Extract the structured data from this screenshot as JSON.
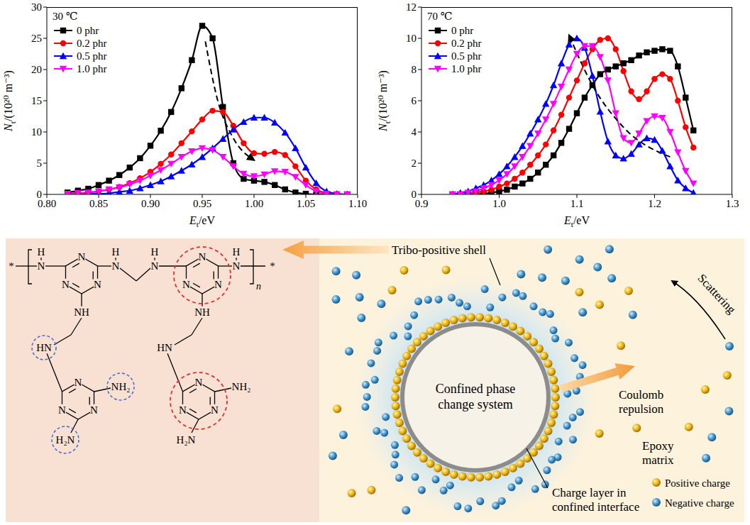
{
  "chart_data": [
    {
      "type": "line",
      "title": "30 ℃",
      "xlabel": {
        "symbol": "E",
        "subscript": "t",
        "unit": "/eV"
      },
      "ylabel": {
        "symbol": "N",
        "subscript": "t",
        "unit": "/(10²⁰ m⁻³)"
      },
      "x": [
        0.82,
        0.83,
        0.84,
        0.85,
        0.86,
        0.87,
        0.88,
        0.89,
        0.9,
        0.91,
        0.92,
        0.93,
        0.94,
        0.95,
        0.96,
        0.97,
        0.98,
        0.99,
        1.0,
        1.01,
        1.02,
        1.03,
        1.04,
        1.05,
        1.06,
        1.07,
        1.08,
        1.09
      ],
      "xlim": [
        0.8,
        1.1
      ],
      "xticks": [
        {
          "value": 0.8,
          "label": "0.80"
        },
        0.85,
        {
          "value": 0.9,
          "label": "0.90"
        },
        0.95,
        {
          "value": 1,
          "label": "1.00"
        },
        1.05,
        {
          "value": 1.1,
          "label": "1.10"
        }
      ],
      "ylim": [
        0,
        30
      ],
      "yticks": [
        0,
        5,
        10,
        15,
        20,
        25,
        30
      ],
      "legend": "upper left",
      "series": [
        {
          "name": "0 phr",
          "color": "#000000",
          "marker": "square",
          "values": [
            0.3,
            0.6,
            0.9,
            1.5,
            2.2,
            3.1,
            4.3,
            5.8,
            7.8,
            10.2,
            13.2,
            17,
            21.5,
            27,
            25,
            14,
            5,
            2.5,
            2.2,
            2.0,
            1.5,
            0.8,
            0.3,
            0.1,
            0,
            0,
            0,
            0
          ]
        },
        {
          "name": "0.2 phr",
          "color": "#ff0000",
          "marker": "circle",
          "values": [
            0.1,
            0.2,
            0.3,
            0.5,
            0.8,
            1.2,
            1.8,
            2.6,
            3.6,
            4.9,
            6.4,
            8.2,
            10.1,
            12,
            13.4,
            13.2,
            11,
            8.2,
            6.6,
            6.5,
            6.8,
            6.3,
            4.5,
            2.2,
            0.8,
            0.2,
            0,
            0
          ]
        },
        {
          "name": "0.5 phr",
          "color": "#0000ff",
          "marker": "triangle",
          "values": [
            0,
            0,
            0.1,
            0.1,
            0.2,
            0.4,
            0.6,
            1,
            1.5,
            2.1,
            2.9,
            3.8,
            4.8,
            6,
            7.4,
            8.9,
            10.4,
            11.6,
            12.3,
            12.3,
            11.5,
            9.9,
            7.4,
            4.3,
            1.8,
            0.5,
            0.1,
            0
          ]
        },
        {
          "name": "1.0 phr",
          "color": "#ff00ff",
          "marker": "triangle-down",
          "values": [
            0.1,
            0.2,
            0.3,
            0.5,
            0.8,
            1.1,
            1.6,
            2.2,
            3,
            3.9,
            4.9,
            6,
            6.9,
            7.4,
            7.1,
            6,
            4.5,
            3.3,
            2.9,
            3.2,
            3.7,
            3.6,
            2.8,
            1.5,
            0.5,
            0.1,
            0,
            0
          ]
        }
      ],
      "annotations": [
        {
          "type": "arrow",
          "line_style": "dashed",
          "color": "#000000",
          "x": [
            0.953,
            0.965,
            0.98,
            1.0
          ],
          "values": [
            24.5,
            15,
            9,
            5.5
          ]
        }
      ]
    },
    {
      "type": "line",
      "title": "70 ℃",
      "xlabel": {
        "symbol": "E",
        "subscript": "t",
        "unit": "/eV"
      },
      "ylabel": {
        "symbol": "N",
        "subscript": "t",
        "unit": "/(10²⁰ m⁻³)"
      },
      "x": [
        0.94,
        0.95,
        0.96,
        0.97,
        0.98,
        0.99,
        1.0,
        1.01,
        1.02,
        1.03,
        1.04,
        1.05,
        1.06,
        1.07,
        1.08,
        1.09,
        1.1,
        1.11,
        1.12,
        1.13,
        1.14,
        1.15,
        1.16,
        1.17,
        1.18,
        1.19,
        1.2,
        1.21,
        1.22,
        1.23,
        1.24,
        1.25
      ],
      "xlim": [
        0.9,
        1.3
      ],
      "xticks": [
        0.9,
        {
          "value": 1,
          "label": "1.0"
        },
        1.1,
        1.2,
        1.3
      ],
      "ylim": [
        0,
        12
      ],
      "yticks": [
        0,
        2,
        4,
        6,
        8,
        10,
        12
      ],
      "legend": "upper left",
      "series": [
        {
          "name": "0 phr",
          "color": "#000000",
          "marker": "square",
          "values": [
            0,
            0,
            0,
            0,
            0.05,
            0.1,
            0.2,
            0.3,
            0.5,
            0.7,
            1,
            1.4,
            1.9,
            2.5,
            3.3,
            4.2,
            5.2,
            6.2,
            7,
            7.7,
            8,
            8.2,
            8.4,
            8.6,
            8.9,
            9.1,
            9.2,
            9.3,
            9.2,
            8.2,
            6.2,
            4.1
          ]
        },
        {
          "name": "0.2 phr",
          "color": "#ff0000",
          "marker": "circle",
          "values": [
            0,
            0,
            0,
            0.1,
            0.2,
            0.3,
            0.5,
            0.7,
            1,
            1.4,
            1.9,
            2.5,
            3.2,
            4.1,
            5.1,
            6.2,
            7.3,
            8.4,
            9.3,
            9.9,
            10,
            9.3,
            7.9,
            6.6,
            6.1,
            6.6,
            7.4,
            7.7,
            7.4,
            6,
            4.3,
            3
          ]
        },
        {
          "name": "0.5 phr",
          "color": "#0000ff",
          "marker": "triangle",
          "values": [
            0,
            0.1,
            0.2,
            0.4,
            0.6,
            0.9,
            1.3,
            1.8,
            2.4,
            3.1,
            3.9,
            4.8,
            5.8,
            7,
            8.4,
            9.6,
            10,
            9.4,
            7.6,
            5.3,
            3.4,
            2.5,
            2.3,
            2.6,
            3.2,
            3.6,
            3.5,
            2.8,
            1.8,
            0.9,
            0.4,
            0.1
          ]
        },
        {
          "name": "1.0 phr",
          "color": "#ff00ff",
          "marker": "triangle-down",
          "values": [
            0,
            0,
            0.1,
            0.2,
            0.4,
            0.6,
            0.9,
            1.3,
            1.8,
            2.4,
            3.1,
            3.9,
            4.8,
            5.8,
            6.9,
            8,
            9,
            9.5,
            9.5,
            8.8,
            7.3,
            5.2,
            3.6,
            3.3,
            3.9,
            4.7,
            5,
            4.9,
            4,
            2.7,
            1.5,
            0.7
          ]
        }
      ],
      "annotations": [
        {
          "type": "arrow",
          "line_style": "dashed",
          "color": "#000000",
          "x": [
            1.22,
            1.16,
            1.12,
            1.09
          ],
          "values": [
            2.4,
            4.3,
            7,
            10.2
          ]
        }
      ]
    }
  ],
  "diagram": {
    "structure": {
      "end_group": "*",
      "repeat_unit": "n",
      "ring_atom": "N",
      "chain_n": "N",
      "chain_h": "H",
      "linker": "NH",
      "linker_reversed": "HN",
      "amine_right": "NH₂",
      "amine_left": "H₂N"
    },
    "schematic": {
      "shell_label": "Tribo-positive shell",
      "core_label": "Confined phase change system",
      "interface_label": "Charge layer in confined interface",
      "repulsion_label": "Coulomb repulsion",
      "scattering_label": "Scattering",
      "matrix_label": "Epoxy matrix",
      "legend": [
        {
          "name": "Positive charge",
          "color": "#e8b010"
        },
        {
          "name": "Negative charge",
          "color": "#3b8fc8"
        }
      ]
    }
  }
}
